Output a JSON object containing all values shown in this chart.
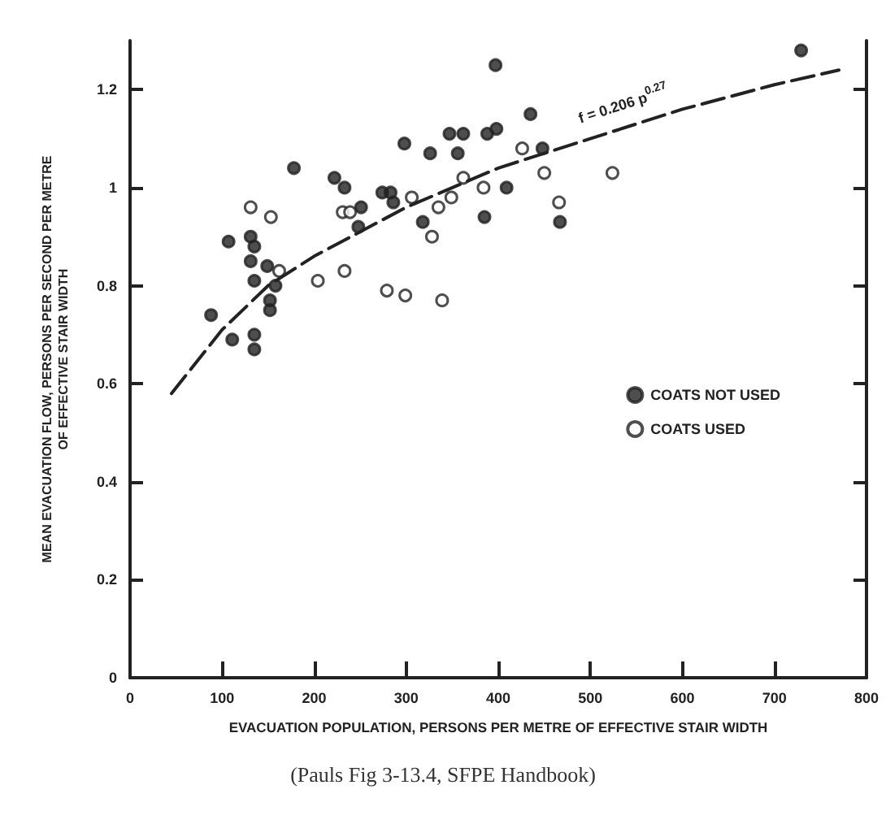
{
  "chart_data": {
    "type": "scatter",
    "xlabel": "EVACUATION POPULATION, PERSONS PER METRE OF EFFECTIVE STAIR WIDTH",
    "ylabel": "MEAN EVACUATION FLOW, PERSONS PER SECOND PER METRE OF EFFECTIVE STAIR WIDTH",
    "xlim": [
      0,
      800
    ],
    "xticks": [
      0,
      100,
      200,
      300,
      400,
      500,
      600,
      700,
      800
    ],
    "ylim": [
      0,
      1.3
    ],
    "yticks": [
      0,
      0.2,
      0.4,
      0.6,
      0.8,
      1.0,
      1.2
    ],
    "grid": false,
    "legend": "right",
    "marker": "circle",
    "annotations": [
      "f = 0.206 p$^{0.27}$",
      "(Pauls Fig 3-13.4, SFPE Handbook)"
    ],
    "series": [
      {
        "name": "COATS NOT USED",
        "color": "#222222",
        "x": [
          178,
          107,
          131,
          135,
          131,
          149,
          135,
          158,
          152,
          152,
          88,
          111,
          135,
          135,
          222,
          233,
          251,
          248,
          274,
          283,
          286,
          298,
          326,
          347,
          362,
          356,
          318,
          385,
          397,
          388,
          398,
          435,
          409,
          467,
          729,
          448
        ],
        "values": [
          1.04,
          0.89,
          0.9,
          0.88,
          0.85,
          0.84,
          0.81,
          0.8,
          0.77,
          0.75,
          0.74,
          0.69,
          0.7,
          0.67,
          1.02,
          1.0,
          0.96,
          0.92,
          0.99,
          0.99,
          0.97,
          1.09,
          1.07,
          1.11,
          1.11,
          1.07,
          0.93,
          0.94,
          1.25,
          1.11,
          1.12,
          1.15,
          1.0,
          0.93,
          1.28,
          1.08
        ]
      },
      {
        "name": "COATS USED",
        "color": "#ffffff",
        "x": [
          131,
          153,
          162,
          204,
          233,
          231,
          239,
          279,
          299,
          339,
          306,
          328,
          335,
          349,
          362,
          384,
          450,
          466,
          524,
          426
        ],
        "values": [
          0.96,
          0.94,
          0.83,
          0.81,
          0.83,
          0.95,
          0.95,
          0.79,
          0.78,
          0.77,
          0.98,
          0.9,
          0.96,
          0.98,
          1.02,
          1.0,
          1.03,
          0.97,
          1.03,
          1.08
        ]
      },
      {
        "type": "line",
        "color": "#222222",
        "marker": "none",
        "line_style": "dashed",
        "x": [
          45,
          100,
          150,
          200,
          300,
          400,
          500,
          600,
          700,
          770
        ],
        "values": [
          0.58,
          0.71,
          0.8,
          0.86,
          0.96,
          1.04,
          1.1,
          1.16,
          1.21,
          1.24
        ]
      }
    ]
  }
}
